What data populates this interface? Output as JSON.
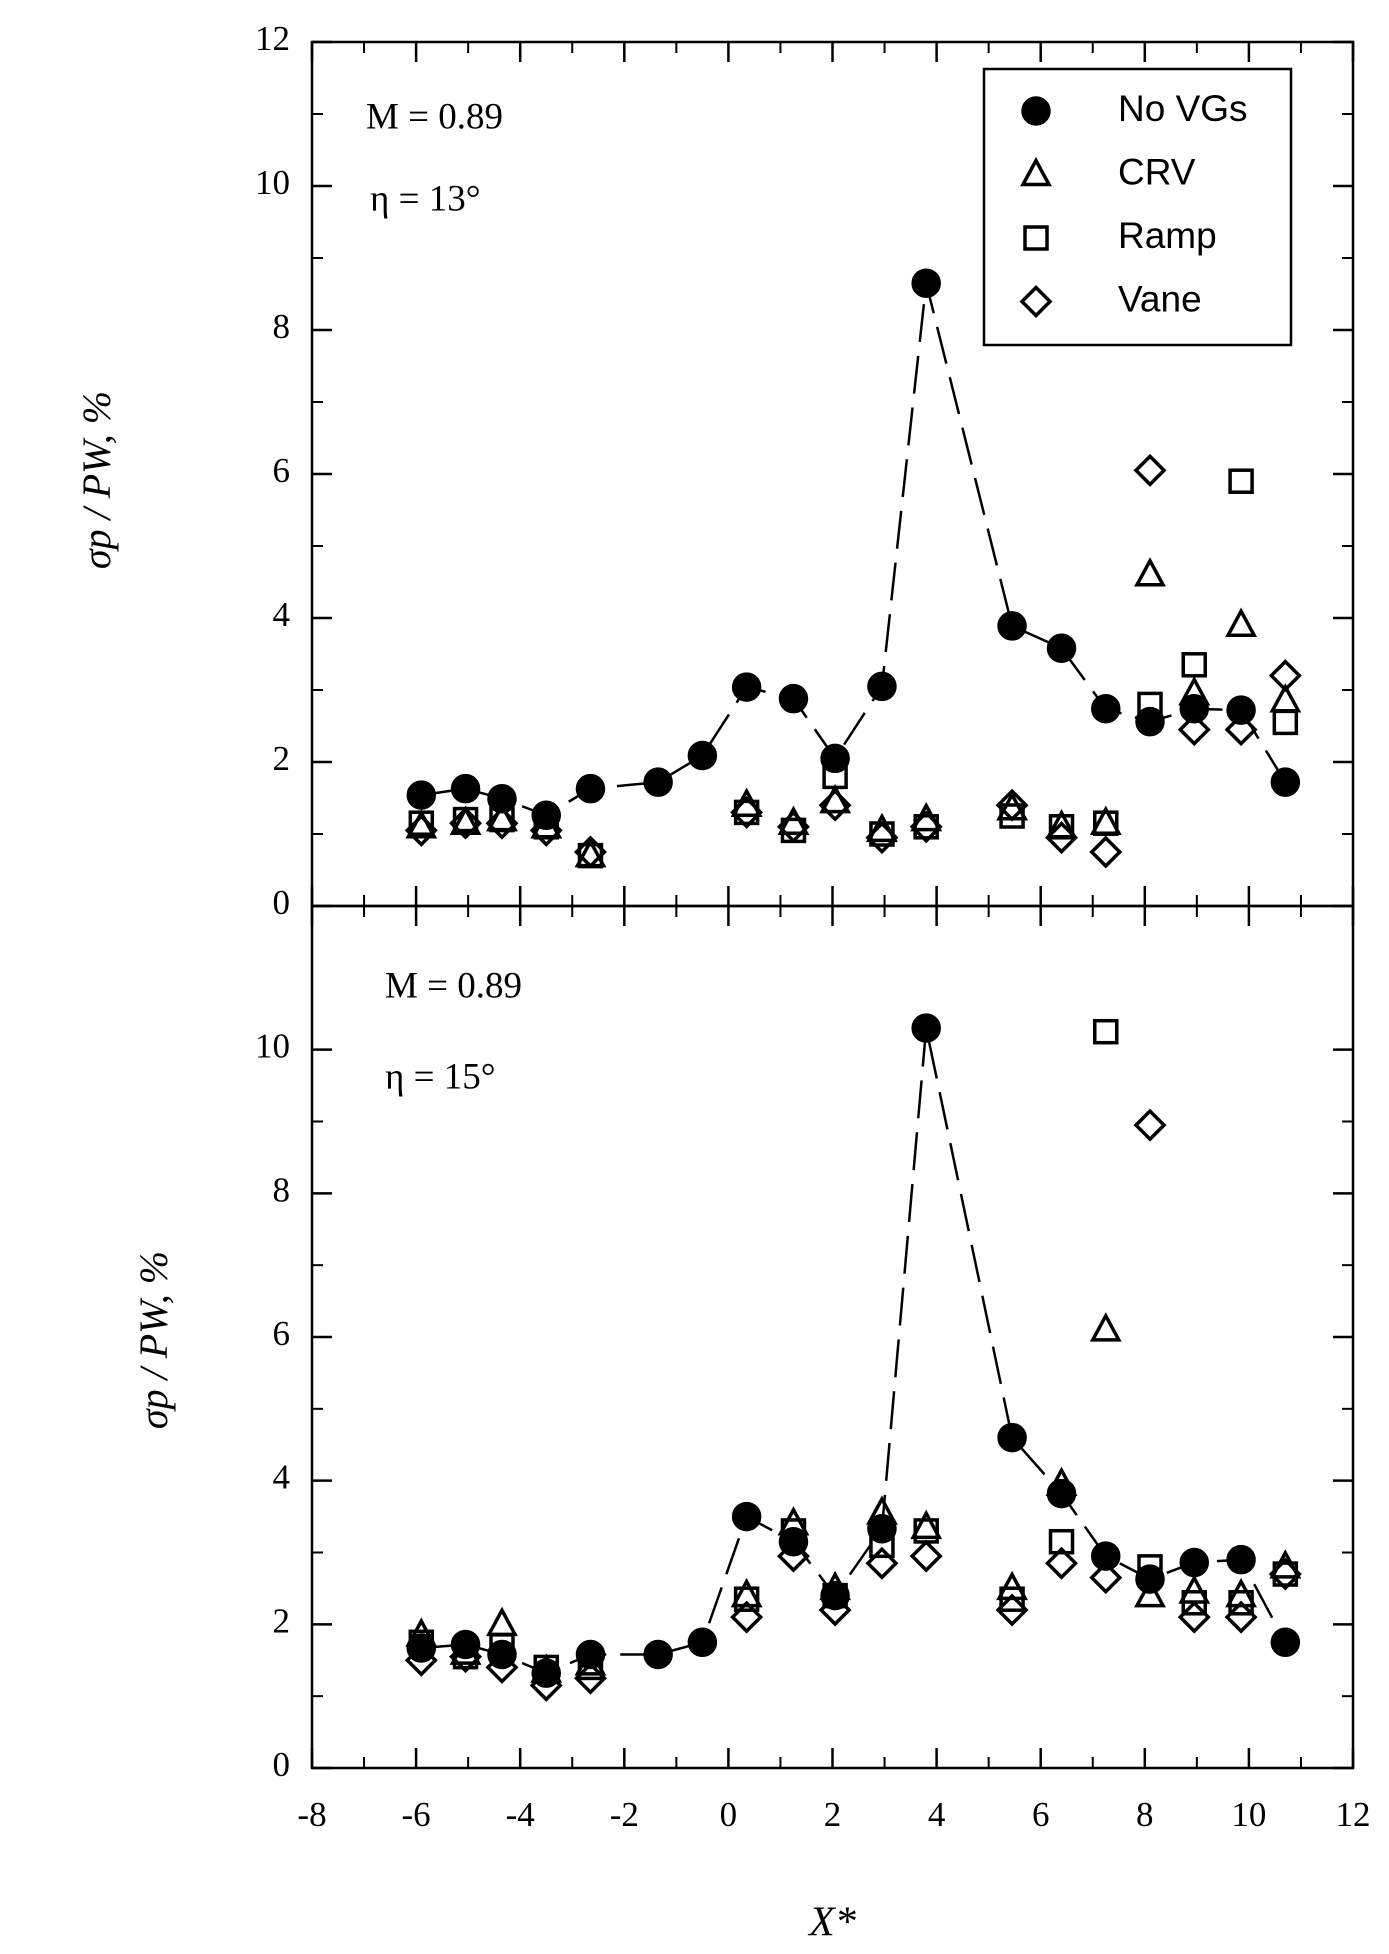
{
  "chart_data": [
    {
      "type": "scatter",
      "ylabel": "σp / PW, %",
      "annotations": [
        "M = 0.89",
        "η = 13°"
      ],
      "legend": "upper right",
      "xlim": [
        -8,
        12
      ],
      "ylim": [
        0,
        12
      ],
      "yticks": [
        0,
        2,
        4,
        6,
        8,
        10,
        12
      ],
      "x": [
        -5.9,
        -5.05,
        -4.35,
        -3.5,
        -2.65,
        -1.35,
        -0.5,
        0.35,
        1.25,
        2.05,
        2.95,
        3.8,
        5.45,
        6.4,
        7.25,
        8.1,
        8.95,
        9.85,
        10.7
      ],
      "series": [
        {
          "name": "No VGs",
          "marker": "circle",
          "line": "dashed",
          "color": "#000000",
          "values": [
            1.54,
            1.63,
            1.49,
            1.26,
            1.63,
            1.72,
            2.09,
            3.04,
            2.88,
            2.05,
            3.05,
            8.65,
            3.89,
            3.58,
            2.74,
            2.56,
            2.74,
            2.72,
            1.72
          ]
        },
        {
          "name": "CRV",
          "marker": "triangle",
          "color": "#000000",
          "values": [
            1.1,
            1.15,
            1.2,
            1.1,
            0.7,
            null,
            null,
            1.4,
            1.15,
            1.45,
            1.05,
            1.2,
            1.35,
            1.1,
            1.15,
            4.6,
            2.95,
            3.9,
            2.85
          ]
        },
        {
          "name": "Ramp",
          "marker": "square",
          "color": "#000000",
          "values": [
            1.15,
            1.2,
            1.2,
            1.1,
            0.7,
            null,
            null,
            1.3,
            1.05,
            1.8,
            1.0,
            1.1,
            1.25,
            1.1,
            1.15,
            2.8,
            3.35,
            5.9,
            2.55
          ]
        },
        {
          "name": "Vane",
          "marker": "diamond",
          "color": "#000000",
          "values": [
            1.05,
            1.15,
            1.15,
            1.05,
            0.75,
            null,
            null,
            1.3,
            1.1,
            1.4,
            0.95,
            1.1,
            1.4,
            0.95,
            0.75,
            6.05,
            2.45,
            2.45,
            3.2
          ]
        }
      ]
    },
    {
      "type": "scatter",
      "ylabel": "σp / PW, %",
      "xlabel": "X*",
      "annotations": [
        "M = 0.89",
        "η = 15°"
      ],
      "xlim": [
        -8,
        12
      ],
      "xticks": [
        -8,
        -6,
        -4,
        -2,
        0,
        2,
        4,
        6,
        8,
        10,
        12
      ],
      "ylim": [
        0,
        12
      ],
      "yticks": [
        0,
        2,
        4,
        6,
        8,
        10
      ],
      "x": [
        -5.9,
        -5.05,
        -4.35,
        -3.5,
        -2.65,
        -1.35,
        -0.5,
        0.35,
        1.25,
        2.05,
        2.95,
        3.8,
        5.45,
        6.4,
        7.25,
        8.1,
        8.95,
        9.85,
        10.7
      ],
      "series": [
        {
          "marker": "circle",
          "line": "dashed",
          "color": "#000000",
          "values": [
            1.67,
            1.72,
            1.58,
            1.32,
            1.58,
            1.58,
            1.75,
            3.5,
            3.15,
            2.4,
            3.33,
            10.3,
            4.6,
            3.82,
            2.95,
            2.63,
            2.86,
            2.9,
            1.75
          ]
        },
        {
          "marker": "triangle",
          "color": "#000000",
          "values": [
            1.85,
            1.6,
            2.0,
            1.35,
            1.45,
            null,
            null,
            2.4,
            3.4,
            2.5,
            3.55,
            3.35,
            2.5,
            3.95,
            6.1,
            2.4,
            2.45,
            2.4,
            2.8
          ]
        },
        {
          "marker": "square",
          "color": "#000000",
          "values": [
            1.75,
            1.55,
            1.7,
            1.4,
            1.4,
            null,
            null,
            2.35,
            3.3,
            2.4,
            3.1,
            3.3,
            2.35,
            3.15,
            10.25,
            2.8,
            2.3,
            2.3,
            2.7
          ]
        },
        {
          "marker": "diamond",
          "color": "#000000",
          "values": [
            1.5,
            1.55,
            1.4,
            1.15,
            1.25,
            null,
            null,
            2.1,
            2.95,
            2.2,
            2.85,
            2.95,
            2.2,
            2.85,
            2.65,
            8.95,
            2.1,
            2.1,
            2.7
          ]
        }
      ]
    }
  ]
}
